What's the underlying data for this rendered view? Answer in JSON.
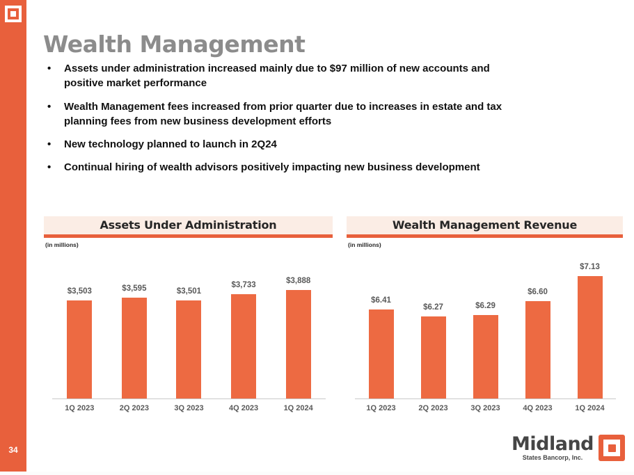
{
  "slide": {
    "title": "Wealth Management",
    "page_number": "34",
    "bullet_glyph": "•",
    "bullets": [
      "Assets under administration increased mainly due to $97 million of new accounts and\npositive market performance",
      "Wealth Management fees increased from prior quarter due to increases in estate and tax\nplanning fees from new business development efforts",
      "New technology planned to launch in 2Q24",
      "Continual hiring of wealth advisors positively impacting new business development"
    ]
  },
  "colors": {
    "accent_orange": "#E8603C",
    "bar_orange": "#ED6A42",
    "header_band_bg": "#FBEDE5",
    "title_gray": "#8C8C8C",
    "label_gray": "#595959",
    "axis_line": "#C8C8C8"
  },
  "footer": {
    "brand": "Midland",
    "brand_sub": "States Bancorp, Inc."
  },
  "chart_data": [
    {
      "type": "bar",
      "title": "Assets Under Administration",
      "units_note": "(in millions)",
      "categories": [
        "1Q 2023",
        "2Q 2023",
        "3Q 2023",
        "4Q 2023",
        "1Q 2024"
      ],
      "values": [
        3503,
        3595,
        3501,
        3733,
        3888
      ],
      "labels": [
        "$3,503",
        "$3,595",
        "$3,501",
        "$3,733",
        "$3,888"
      ],
      "bar_color": "#ED6A42",
      "ylim": [
        0,
        4500
      ],
      "grid": false,
      "legend": "none",
      "value_labels_position": "above-bars"
    },
    {
      "type": "bar",
      "title": "Wealth Management Revenue",
      "units_note": "(in millions)",
      "categories": [
        "1Q 2023",
        "2Q 2023",
        "3Q 2023",
        "4Q 2023",
        "1Q 2024"
      ],
      "values": [
        6.41,
        6.27,
        6.29,
        6.6,
        7.13
      ],
      "labels": [
        "$6.41",
        "$6.27",
        "$6.29",
        "$6.60",
        "$7.13"
      ],
      "bar_color": "#ED6A42",
      "ylim": [
        4.5,
        7.6
      ],
      "grid": false,
      "legend": "none",
      "value_labels_position": "above-bars"
    }
  ]
}
